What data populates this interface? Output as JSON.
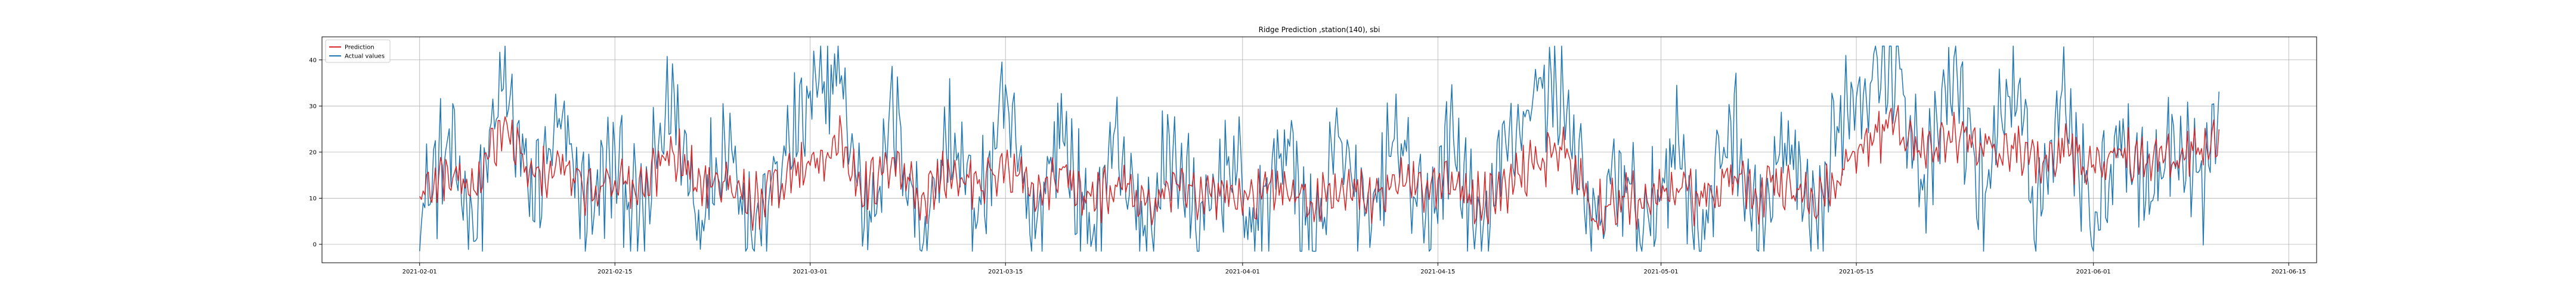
{
  "chart_data": {
    "type": "line",
    "title": "Ridge Prediction ,station(140), sbi",
    "xlabel": "",
    "ylabel": "",
    "x_range": [
      "2021-01-25",
      "2021-06-17"
    ],
    "ylim": [
      -4,
      45
    ],
    "x_ticks": [
      "2021-02-01",
      "2021-02-15",
      "2021-03-01",
      "2021-03-15",
      "2021-04-01",
      "2021-04-15",
      "2021-05-01",
      "2021-05-15",
      "2021-06-01",
      "2021-06-15"
    ],
    "y_ticks": [
      0,
      10,
      20,
      30,
      40
    ],
    "grid": true,
    "legend_position": "top-left",
    "data_start": "2021-02-01",
    "data_end": "2021-06-10",
    "series": [
      {
        "name": "Prediction",
        "color": "#d62728",
        "points": [
          [
            "2021-02-01",
            10
          ],
          [
            "2021-02-03",
            16
          ],
          [
            "2021-02-05",
            12
          ],
          [
            "2021-02-07",
            26
          ],
          [
            "2021-02-09",
            14
          ],
          [
            "2021-02-11",
            17
          ],
          [
            "2021-02-13",
            12
          ],
          [
            "2021-02-15",
            15
          ],
          [
            "2021-02-17",
            11
          ],
          [
            "2021-02-19",
            22
          ],
          [
            "2021-02-21",
            13
          ],
          [
            "2021-02-23",
            16
          ],
          [
            "2021-02-25",
            9
          ],
          [
            "2021-02-27",
            14
          ],
          [
            "2021-03-01",
            18
          ],
          [
            "2021-03-03",
            22
          ],
          [
            "2021-03-05",
            12
          ],
          [
            "2021-03-07",
            17
          ],
          [
            "2021-03-09",
            10
          ],
          [
            "2021-03-11",
            15
          ],
          [
            "2021-03-13",
            14
          ],
          [
            "2021-03-15",
            16
          ],
          [
            "2021-03-17",
            11
          ],
          [
            "2021-03-19",
            15
          ],
          [
            "2021-03-21",
            9
          ],
          [
            "2021-03-23",
            14
          ],
          [
            "2021-03-25",
            8
          ],
          [
            "2021-03-27",
            13
          ],
          [
            "2021-03-29",
            9
          ],
          [
            "2021-03-31",
            12
          ],
          [
            "2021-04-02",
            10
          ],
          [
            "2021-04-04",
            13
          ],
          [
            "2021-04-06",
            9
          ],
          [
            "2021-04-08",
            12
          ],
          [
            "2021-04-10",
            10
          ],
          [
            "2021-04-12",
            14
          ],
          [
            "2021-04-14",
            11
          ],
          [
            "2021-04-16",
            13
          ],
          [
            "2021-04-18",
            9
          ],
          [
            "2021-04-20",
            12
          ],
          [
            "2021-04-22",
            18
          ],
          [
            "2021-04-24",
            21
          ],
          [
            "2021-04-26",
            7
          ],
          [
            "2021-04-28",
            10
          ],
          [
            "2021-04-30",
            9
          ],
          [
            "2021-05-02",
            12
          ],
          [
            "2021-05-04",
            10
          ],
          [
            "2021-05-06",
            14
          ],
          [
            "2021-05-08",
            11
          ],
          [
            "2021-05-10",
            13
          ],
          [
            "2021-05-12",
            9
          ],
          [
            "2021-05-14",
            15
          ],
          [
            "2021-05-16",
            23
          ],
          [
            "2021-05-18",
            26
          ],
          [
            "2021-05-20",
            20
          ],
          [
            "2021-05-22",
            24
          ],
          [
            "2021-05-24",
            20
          ],
          [
            "2021-05-26",
            22
          ],
          [
            "2021-05-28",
            18
          ],
          [
            "2021-05-30",
            21
          ],
          [
            "2021-06-01",
            16
          ],
          [
            "2021-06-03",
            20
          ],
          [
            "2021-06-05",
            18
          ],
          [
            "2021-06-07",
            19
          ],
          [
            "2021-06-09",
            21
          ],
          [
            "2021-06-10",
            24
          ]
        ]
      },
      {
        "name": "Actual values",
        "color": "#1f77b4",
        "points": [
          [
            "2021-02-01",
            8
          ],
          [
            "2021-02-03",
            20
          ],
          [
            "2021-02-05",
            6
          ],
          [
            "2021-02-07",
            35
          ],
          [
            "2021-02-09",
            10
          ],
          [
            "2021-02-11",
            25
          ],
          [
            "2021-02-13",
            8
          ],
          [
            "2021-02-15",
            18
          ],
          [
            "2021-02-17",
            4
          ],
          [
            "2021-02-19",
            33
          ],
          [
            "2021-02-21",
            6
          ],
          [
            "2021-02-23",
            25
          ],
          [
            "2021-02-25",
            2
          ],
          [
            "2021-02-27",
            18
          ],
          [
            "2021-03-01",
            30
          ],
          [
            "2021-03-03",
            38
          ],
          [
            "2021-03-05",
            5
          ],
          [
            "2021-03-07",
            28
          ],
          [
            "2021-03-09",
            3
          ],
          [
            "2021-03-11",
            24
          ],
          [
            "2021-03-13",
            6
          ],
          [
            "2021-03-15",
            30
          ],
          [
            "2021-03-17",
            4
          ],
          [
            "2021-03-19",
            26
          ],
          [
            "2021-03-21",
            1
          ],
          [
            "2021-03-23",
            24
          ],
          [
            "2021-03-25",
            0
          ],
          [
            "2021-03-27",
            22
          ],
          [
            "2021-03-29",
            1
          ],
          [
            "2021-03-31",
            20
          ],
          [
            "2021-04-02",
            2
          ],
          [
            "2021-04-04",
            24
          ],
          [
            "2021-04-06",
            0
          ],
          [
            "2021-04-08",
            22
          ],
          [
            "2021-04-10",
            1
          ],
          [
            "2021-04-12",
            25
          ],
          [
            "2021-04-14",
            2
          ],
          [
            "2021-04-16",
            24
          ],
          [
            "2021-04-18",
            0
          ],
          [
            "2021-04-20",
            22
          ],
          [
            "2021-04-22",
            33
          ],
          [
            "2021-04-24",
            34
          ],
          [
            "2021-04-26",
            1
          ],
          [
            "2021-04-28",
            16
          ],
          [
            "2021-04-30",
            2
          ],
          [
            "2021-05-02",
            24
          ],
          [
            "2021-05-04",
            1
          ],
          [
            "2021-05-06",
            28
          ],
          [
            "2021-05-08",
            2
          ],
          [
            "2021-05-10",
            22
          ],
          [
            "2021-05-12",
            0
          ],
          [
            "2021-05-14",
            30
          ],
          [
            "2021-05-16",
            38
          ],
          [
            "2021-05-18",
            40
          ],
          [
            "2021-05-20",
            12
          ],
          [
            "2021-05-22",
            38
          ],
          [
            "2021-05-24",
            10
          ],
          [
            "2021-05-26",
            36
          ],
          [
            "2021-05-28",
            8
          ],
          [
            "2021-05-30",
            34
          ],
          [
            "2021-06-01",
            4
          ],
          [
            "2021-06-03",
            26
          ],
          [
            "2021-06-05",
            12
          ],
          [
            "2021-06-07",
            24
          ],
          [
            "2021-06-09",
            14
          ],
          [
            "2021-06-10",
            30
          ]
        ]
      }
    ]
  }
}
